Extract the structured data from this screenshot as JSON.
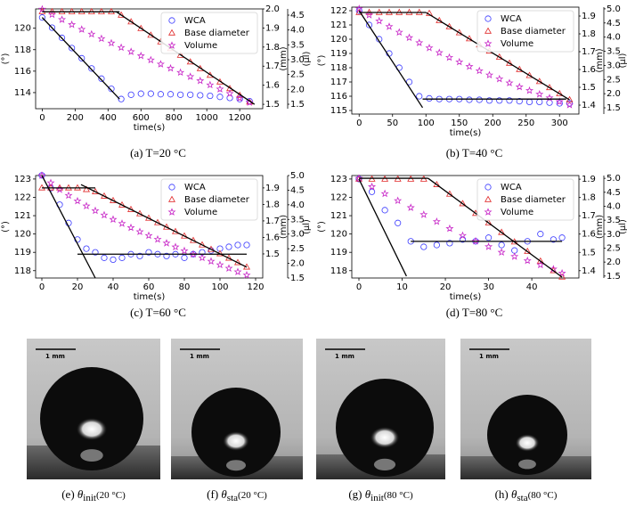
{
  "chart_data": [
    {
      "type": "scatter",
      "caption": "(a)  T=20 °C",
      "x_label": "time(s)",
      "y_label": "(°)",
      "y2_label": "(mm)",
      "y3_label": "(μl)",
      "legend": "upper right",
      "x": [
        0,
        60,
        120,
        180,
        240,
        300,
        360,
        420,
        480,
        540,
        600,
        660,
        720,
        780,
        840,
        900,
        960,
        1020,
        1080,
        1140,
        1200,
        1260
      ],
      "xlim": [
        -40,
        1340
      ],
      "xticks": [
        0,
        200,
        400,
        600,
        800,
        1000,
        1200
      ],
      "ylim": [
        112.5,
        121.8
      ],
      "yticks": [
        114,
        116,
        118,
        120
      ],
      "y2lim": [
        1.477,
        2.0
      ],
      "y2ticks": [
        {
          "value": 2,
          "label": "2.0"
        },
        1.9,
        1.8,
        1.7,
        1.6,
        1.5
      ],
      "y3lim": [
        1.35,
        4.71
      ],
      "y3ticks": [
        1.5,
        {
          "value": 2,
          "label": "2.0"
        },
        2.5,
        {
          "value": 3,
          "label": "3.0"
        },
        3.5,
        {
          "value": 4,
          "label": "4.0"
        },
        4.5
      ],
      "series": [
        {
          "name": "WCA",
          "color": "#3a3aff",
          "marker": "circle",
          "axis": "y",
          "values": [
            121,
            120.05,
            119.1,
            118.15,
            117.2,
            116.25,
            115.3,
            114.35,
            113.4,
            113.8,
            113.9,
            113.9,
            113.85,
            113.85,
            113.8,
            113.8,
            113.75,
            113.7,
            113.6,
            113.5,
            113.4,
            113.2
          ]
        },
        {
          "name": "Base diameter",
          "color": "#e02828",
          "marker": "triangle",
          "axis": "y2",
          "values": [
            1.985,
            1.985,
            1.985,
            1.985,
            1.985,
            1.985,
            1.985,
            1.985,
            1.967,
            1.932,
            1.897,
            1.862,
            1.827,
            1.792,
            1.757,
            1.722,
            1.687,
            1.652,
            1.617,
            1.582,
            1.547,
            1.512
          ]
        },
        {
          "name": "Volume",
          "color": "#c828c8",
          "marker": "star",
          "axis": "y3",
          "values": [
            4.7,
            4.52,
            4.35,
            4.18,
            4.02,
            3.86,
            3.71,
            3.56,
            3.41,
            3.27,
            3.13,
            2.99,
            2.85,
            2.71,
            2.57,
            2.43,
            2.29,
            2.15,
            2.01,
            1.86,
            1.71,
            1.56
          ]
        }
      ],
      "fit_color": "#000000",
      "fits": [
        {
          "axis": "y",
          "x": [
            0,
            470
          ],
          "y": [
            121,
            113.4
          ]
        },
        {
          "axis": "y2",
          "x": [
            0,
            470
          ],
          "y": [
            1.985,
            1.985
          ]
        },
        {
          "axis": "y2",
          "x": [
            450,
            1290
          ],
          "y": [
            1.985,
            1.5
          ]
        }
      ]
    },
    {
      "type": "scatter",
      "caption": "(b)  T=40 °C",
      "x_label": "time(s)",
      "y_label": "(°)",
      "y2_label": "(mm)",
      "y3_label": "(μl)",
      "legend": "upper right",
      "x": [
        0,
        15,
        30,
        45,
        60,
        75,
        90,
        105,
        120,
        135,
        150,
        165,
        180,
        195,
        210,
        225,
        240,
        255,
        270,
        285,
        300,
        315
      ],
      "xlim": [
        -11,
        329
      ],
      "xticks": [
        0,
        50,
        100,
        150,
        200,
        250,
        300
      ],
      "ylim": [
        114.75,
        122.25
      ],
      "yticks": [
        115,
        116,
        117,
        118,
        119,
        120,
        121,
        122
      ],
      "y2lim": [
        1.35,
        1.95
      ],
      "y2ticks": [
        1.9,
        1.8,
        1.7,
        1.6,
        1.5,
        1.4
      ],
      "y3lim": [
        1.28,
        5.06
      ],
      "y3ticks": [
        {
          "value": 5,
          "label": "5.0"
        },
        4.5,
        {
          "value": 4,
          "label": "4.0"
        },
        3.5,
        {
          "value": 3,
          "label": "3.0"
        },
        2.5,
        {
          "value": 2,
          "label": "2.0"
        },
        1.5
      ],
      "series": [
        {
          "name": "WCA",
          "color": "#3a3aff",
          "marker": "circle",
          "axis": "y",
          "values": [
            122,
            121,
            120,
            119,
            118,
            117,
            116,
            115.85,
            115.8,
            115.8,
            115.8,
            115.75,
            115.75,
            115.7,
            115.7,
            115.7,
            115.65,
            115.6,
            115.6,
            115.55,
            115.5,
            115.5
          ]
        },
        {
          "name": "Base diameter",
          "color": "#e02828",
          "marker": "triangle",
          "axis": "y2",
          "values": [
            1.92,
            1.92,
            1.92,
            1.92,
            1.92,
            1.92,
            1.92,
            1.915,
            1.874,
            1.84,
            1.806,
            1.772,
            1.738,
            1.703,
            1.669,
            1.635,
            1.6,
            1.566,
            1.532,
            1.498,
            1.464,
            1.43
          ]
        },
        {
          "name": "Volume",
          "color": "#c828c8",
          "marker": "star",
          "axis": "y3",
          "values": [
            5.0,
            4.78,
            4.57,
            4.37,
            4.17,
            3.98,
            3.8,
            3.62,
            3.45,
            3.28,
            3.12,
            2.96,
            2.81,
            2.66,
            2.52,
            2.38,
            2.24,
            2.11,
            1.98,
            1.85,
            1.72,
            1.6
          ]
        }
      ],
      "fit_color": "#000000",
      "fits": [
        {
          "axis": "y",
          "x": [
            0,
            95
          ],
          "y": [
            122,
            115.2
          ]
        },
        {
          "axis": "y",
          "x": [
            95,
            310
          ],
          "y": [
            115.8,
            115.8
          ]
        },
        {
          "axis": "y2",
          "x": [
            0,
            100
          ],
          "y": [
            1.92,
            1.92
          ]
        },
        {
          "axis": "y2",
          "x": [
            100,
            315
          ],
          "y": [
            1.92,
            1.43
          ]
        }
      ]
    },
    {
      "type": "scatter",
      "caption": "(c)  T=60 °C",
      "x_label": "time(s)",
      "y_label": "(°)",
      "y2_label": "(mm)",
      "y3_label": "(μl)",
      "legend": "upper right",
      "x": [
        0,
        5,
        10,
        15,
        20,
        25,
        30,
        35,
        40,
        45,
        50,
        55,
        60,
        65,
        70,
        75,
        80,
        85,
        90,
        95,
        100,
        105,
        110,
        115
      ],
      "xlim": [
        -3.5,
        124
      ],
      "xticks": [
        0,
        20,
        40,
        60,
        80,
        100,
        120
      ],
      "ylim": [
        117.6,
        123.19
      ],
      "yticks": [
        118,
        119,
        120,
        121,
        122,
        123
      ],
      "y2lim": [
        1.354,
        1.975
      ],
      "y2ticks": [
        1.9,
        1.8,
        1.7,
        1.6,
        1.5
      ],
      "y3lim": [
        1.5,
        5.0
      ],
      "y3ticks": [
        {
          "value": 5,
          "label": "5.0"
        },
        4.5,
        {
          "value": 4,
          "label": "4.0"
        },
        3.5,
        {
          "value": 3,
          "label": "3.0"
        },
        2.5,
        {
          "value": 2,
          "label": "2.0"
        },
        1.5
      ],
      "series": [
        {
          "name": "WCA",
          "color": "#3a3aff",
          "marker": "circle",
          "axis": "y",
          "values": [
            123.2,
            122.5,
            121.6,
            120.6,
            119.7,
            119.2,
            119.0,
            118.7,
            118.6,
            118.7,
            118.9,
            118.8,
            119.0,
            118.9,
            118.8,
            118.9,
            118.7,
            118.9,
            119.0,
            119.1,
            119.2,
            119.3,
            119.4,
            119.4
          ]
        },
        {
          "name": "Base diameter",
          "color": "#e02828",
          "marker": "triangle",
          "axis": "y2",
          "values": [
            1.9,
            1.9,
            1.9,
            1.9,
            1.9,
            1.89,
            1.877,
            1.85,
            1.823,
            1.796,
            1.769,
            1.743,
            1.716,
            1.689,
            1.662,
            1.635,
            1.608,
            1.581,
            1.554,
            1.527,
            1.501,
            1.474,
            1.447,
            1.42
          ]
        },
        {
          "name": "Volume",
          "color": "#c828c8",
          "marker": "star",
          "axis": "y3",
          "values": [
            5.0,
            4.75,
            4.52,
            4.32,
            4.13,
            3.96,
            3.8,
            3.65,
            3.5,
            3.36,
            3.22,
            3.08,
            2.95,
            2.82,
            2.69,
            2.56,
            2.43,
            2.31,
            2.19,
            2.07,
            1.95,
            1.83,
            1.71,
            1.6
          ]
        }
      ],
      "fit_color": "#000000",
      "fits": [
        {
          "axis": "y",
          "x": [
            0,
            30
          ],
          "y": [
            123.2,
            117.6
          ]
        },
        {
          "axis": "y",
          "x": [
            20,
            115
          ],
          "y": [
            118.9,
            118.9
          ]
        },
        {
          "axis": "y2",
          "x": [
            0,
            30
          ],
          "y": [
            1.9,
            1.9
          ]
        },
        {
          "axis": "y2",
          "x": [
            22,
            115
          ],
          "y": [
            1.92,
            1.42
          ]
        }
      ]
    },
    {
      "type": "scatter",
      "caption": "(d)  T=80 °C",
      "x_label": "time(s)",
      "y_label": "(°)",
      "y2_label": "(mm)",
      "y3_label": "(μl)",
      "legend": "upper right",
      "x": [
        0,
        3,
        6,
        9,
        12,
        15,
        18,
        21,
        24,
        27,
        30,
        33,
        36,
        39,
        42,
        45,
        47
      ],
      "xlim": [
        -1.65,
        50.9
      ],
      "xticks": [
        0,
        10,
        20,
        30,
        40
      ],
      "ylim": [
        117.6,
        123.19
      ],
      "yticks": [
        118,
        119,
        120,
        121,
        122,
        123
      ],
      "y2lim": [
        1.36,
        1.92
      ],
      "y2ticks": [
        1.9,
        1.8,
        1.7,
        1.6,
        1.5,
        1.4
      ],
      "y3lim": [
        1.43,
        5.1
      ],
      "y3ticks": [
        {
          "value": 5,
          "label": "5.0"
        },
        4.5,
        {
          "value": 4,
          "label": "4.0"
        },
        3.5,
        {
          "value": 3,
          "label": "3.0"
        },
        2.5,
        {
          "value": 2,
          "label": "2.0"
        },
        1.5
      ],
      "series": [
        {
          "name": "WCA",
          "color": "#3a3aff",
          "marker": "circle",
          "axis": "y",
          "values": [
            123.0,
            122.3,
            121.3,
            120.6,
            119.6,
            119.3,
            119.4,
            119.5,
            119.7,
            119.6,
            119.8,
            119.4,
            119.1,
            119.6,
            120.0,
            119.7,
            119.8
          ]
        },
        {
          "name": "Base diameter",
          "color": "#e02828",
          "marker": "triangle",
          "axis": "y2",
          "values": [
            1.9,
            1.9,
            1.9,
            1.9,
            1.9,
            1.9,
            1.87,
            1.818,
            1.766,
            1.713,
            1.661,
            1.609,
            1.557,
            1.505,
            1.452,
            1.4,
            1.365
          ]
        },
        {
          "name": "Volume",
          "color": "#c828c8",
          "marker": "star",
          "axis": "y3",
          "values": [
            5.0,
            4.7,
            4.45,
            4.2,
            3.95,
            3.7,
            3.45,
            3.2,
            2.95,
            2.75,
            2.55,
            2.35,
            2.2,
            2.05,
            1.9,
            1.75,
            1.6
          ]
        }
      ],
      "fit_color": "#000000",
      "fits": [
        {
          "axis": "y",
          "x": [
            0,
            11
          ],
          "y": [
            123,
            117.7
          ]
        },
        {
          "axis": "y",
          "x": [
            12,
            47
          ],
          "y": [
            119.6,
            119.6
          ]
        },
        {
          "axis": "y2",
          "x": [
            0,
            16
          ],
          "y": [
            1.905,
            1.905
          ]
        },
        {
          "axis": "y2",
          "x": [
            16,
            47
          ],
          "y": [
            1.905,
            1.365
          ]
        }
      ]
    }
  ],
  "image_panels": [
    {
      "label": "(e)",
      "symbol": "θ",
      "subscript": "init",
      "condition": "(20 °C)",
      "scale_bar": "1 mm"
    },
    {
      "label": "(f)",
      "symbol": "θ",
      "subscript": "sta",
      "condition": "(20 °C)",
      "scale_bar": "1 mm"
    },
    {
      "label": "(g)",
      "symbol": "θ",
      "subscript": "init",
      "condition": "(80 °C)",
      "scale_bar": "1 mm"
    },
    {
      "label": "(h)",
      "symbol": "θ",
      "subscript": "sta",
      "condition": "(80 °C)",
      "scale_bar": "1 mm"
    }
  ]
}
